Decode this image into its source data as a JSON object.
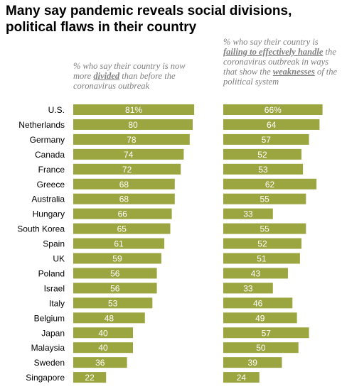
{
  "title": "Many say pandemic reveals social divisions, political flaws in their country",
  "colors": {
    "bar": "#9ba640",
    "label": "#ffffff"
  },
  "chart_data": [
    {
      "type": "bar",
      "orientation": "horizontal",
      "subtitle_parts": [
        {
          "text": "% who say their country is now more ",
          "emph": false
        },
        {
          "text": "divided",
          "emph": true
        },
        {
          "text": " than before the coronavirus outbreak",
          "emph": false
        }
      ],
      "categories": [
        "U.S.",
        "Netherlands",
        "Germany",
        "Canada",
        "France",
        "Greece",
        "Australia",
        "Hungary",
        "South Korea",
        "Spain",
        "UK",
        "Poland",
        "Israel",
        "Italy",
        "Belgium",
        "Japan",
        "Malaysia",
        "Sweden",
        "Singapore"
      ],
      "values": [
        81,
        80,
        78,
        74,
        72,
        68,
        68,
        66,
        65,
        61,
        59,
        56,
        56,
        53,
        48,
        40,
        40,
        36,
        22
      ],
      "value_labels": [
        "81%",
        "80",
        "78",
        "74",
        "72",
        "68",
        "68",
        "66",
        "65",
        "61",
        "59",
        "56",
        "56",
        "53",
        "48",
        "40",
        "40",
        "36",
        "22"
      ]
    },
    {
      "type": "bar",
      "orientation": "horizontal",
      "subtitle_parts": [
        {
          "text": "% who say their country is ",
          "emph": false
        },
        {
          "text": "failing to effectively handle",
          "emph": true
        },
        {
          "text": " the coronavirus outbreak in ways that show the ",
          "emph": false
        },
        {
          "text": "weaknesses",
          "emph": true
        },
        {
          "text": " of the political system",
          "emph": false
        }
      ],
      "categories": [
        "U.S.",
        "Netherlands",
        "Germany",
        "Canada",
        "France",
        "Greece",
        "Australia",
        "Hungary",
        "South Korea",
        "Spain",
        "UK",
        "Poland",
        "Israel",
        "Italy",
        "Belgium",
        "Japan",
        "Malaysia",
        "Sweden",
        "Singapore"
      ],
      "values": [
        66,
        64,
        57,
        52,
        53,
        62,
        55,
        33,
        55,
        52,
        51,
        43,
        33,
        46,
        49,
        57,
        50,
        39,
        24
      ],
      "value_labels": [
        "66%",
        "64",
        "57",
        "52",
        "53",
        "62",
        "55",
        "33",
        "55",
        "52",
        "51",
        "43",
        "33",
        "46",
        "49",
        "57",
        "50",
        "39",
        "24"
      ]
    }
  ]
}
